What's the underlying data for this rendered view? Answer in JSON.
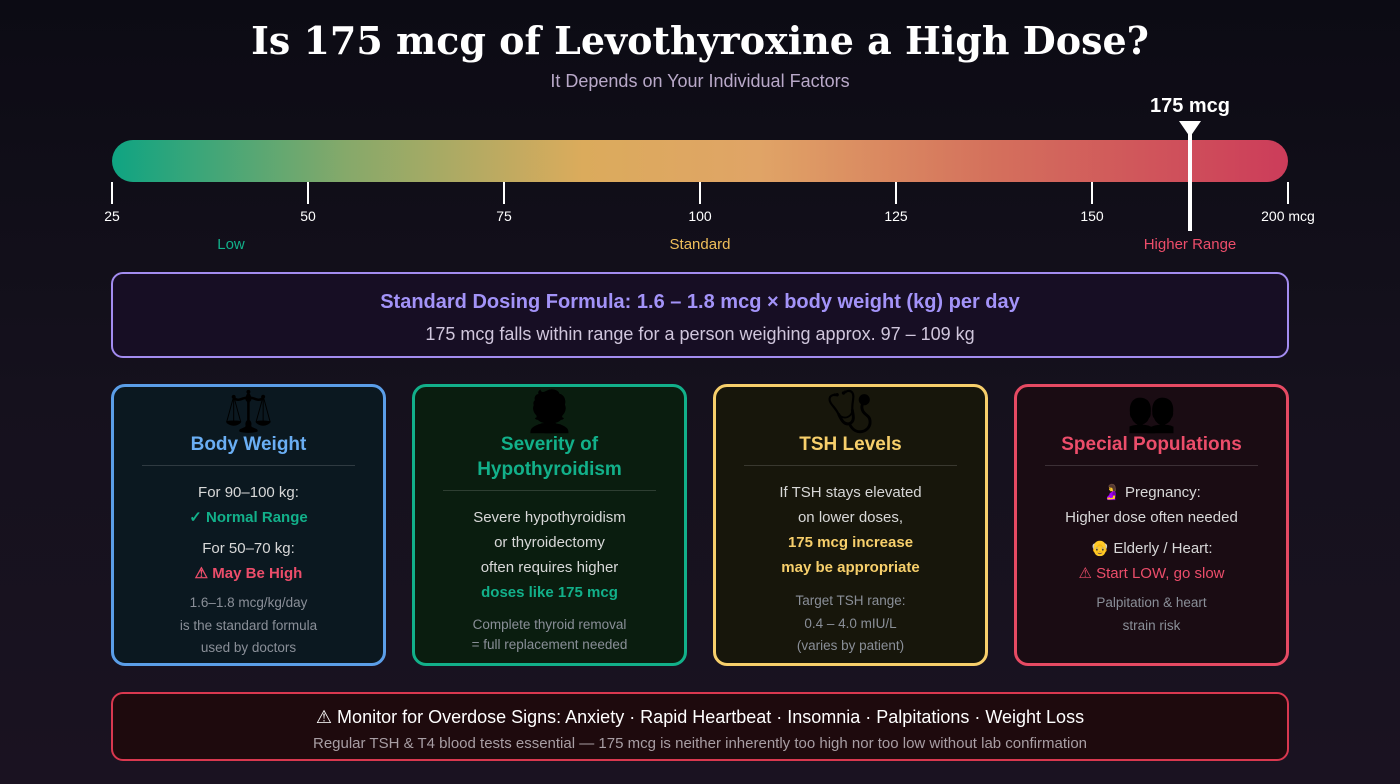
{
  "header": {
    "title": "Is 175 mcg of Levothyroxine a High Dose?",
    "subtitle": "It Depends on Your Individual Factors"
  },
  "gauge": {
    "marker_label": "175 mcg",
    "ticks": [
      "25",
      "50",
      "75",
      "100",
      "125",
      "150",
      "200 mcg"
    ],
    "zones": [
      "Low",
      "Standard",
      "Higher Range"
    ],
    "zone_colors": [
      "#12b08a",
      "#f1bf5b",
      "#ec4d6a"
    ]
  },
  "formula": {
    "title": "Standard Dosing Formula: 1.6 – 1.8 mcg × body weight (kg) per day",
    "subtitle": "175 mcg falls within range for a person weighing approx. 97 – 109 kg"
  },
  "cards": [
    {
      "icon": "⚖️",
      "title": "Body Weight",
      "lines": [
        "For 90–100 kg:",
        "✓ Normal Range",
        "For 50–70 kg:",
        "⚠ May Be High"
      ],
      "notes": [
        "1.6–1.8 mcg/kg/day",
        "is the standard formula",
        "used by doctors"
      ]
    },
    {
      "icon": "🧑‍⚕️",
      "title": "Severity of Hypothyroidism",
      "lines": [
        "Severe hypothyroidism",
        "or thyroidectomy",
        "often requires higher",
        "doses like 175 mcg"
      ],
      "notes": [
        "Complete thyroid removal",
        "= full replacement needed"
      ]
    },
    {
      "icon": "🩺",
      "title": "TSH Levels",
      "lines": [
        "If TSH stays elevated",
        "on lower doses,",
        "175 mcg increase",
        "may be appropriate"
      ],
      "notes": [
        "Target TSH range:",
        "0.4 – 4.0 mIU/L",
        "(varies by patient)"
      ]
    },
    {
      "icon": "👥",
      "title": "Special Populations",
      "lines": [
        "🤰 Pregnancy:",
        "Higher dose often needed",
        "👴 Elderly / Heart:",
        "⚠ Start LOW, go slow"
      ],
      "notes": [
        "Palpitation & heart",
        "strain risk"
      ]
    }
  ],
  "colors": {
    "weight": "#5b9ee8",
    "severity": "#12b08a",
    "tsh": "#f7cf6b",
    "special": "#e64a63"
  },
  "warning": {
    "title": "⚠ Monitor for Overdose Signs: Anxiety · Rapid Heartbeat · Insomnia · Palpitations · Weight Loss",
    "subtitle": "Regular TSH & T4 blood tests essential — 175 mcg is neither inherently too high nor too low without lab confirmation"
  }
}
